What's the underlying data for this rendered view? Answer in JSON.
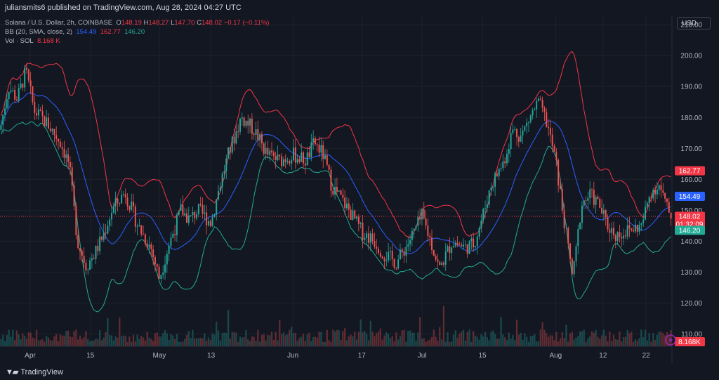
{
  "header": {
    "published": "juliansmits6 published on TradingView.com, Aug 28, 2024 04:27 UTC"
  },
  "legend": {
    "symbol": "Solana / U.S. Dollar, 2h, COINBASE",
    "o_label": "O",
    "o": "148.19",
    "h_label": "H",
    "h": "148.27",
    "l_label": "L",
    "l": "147.70",
    "c_label": "C",
    "c": "148.02",
    "change": "−0.17 (−0.11%)",
    "bb_label": "BB (20, SMA, close, 2)",
    "bb_mid": "154.49",
    "bb_upper": "162.77",
    "bb_lower": "146.20",
    "vol_label": "Vol · SOL",
    "vol": "8.168 K"
  },
  "currency": "USD",
  "brand": "TradingView",
  "colors": {
    "background": "#131722",
    "grid": "#1e222d",
    "upper_band": "#f23645",
    "basis": "#2962ff",
    "lower_band": "#22ab94",
    "up": "#26a69a",
    "down": "#ef5350",
    "text": "#b2b5be"
  },
  "badges": {
    "upper": "162.77",
    "basis": "154.49",
    "price": "148.02",
    "countdown": "01:32:09",
    "lower": "146.20",
    "volume": "8.168K"
  },
  "chart_data": {
    "type": "candlestick",
    "title": "Solana / U.S. Dollar, 2h, COINBASE",
    "y_ticks": [
      210,
      200,
      190,
      180,
      170,
      160,
      150,
      140,
      130,
      120,
      110
    ],
    "ylim": [
      106,
      213
    ],
    "x_ticks": [
      "Apr",
      "15",
      "May",
      "13",
      "Jun",
      "17",
      "Jul",
      "15",
      "Aug",
      "12",
      "22"
    ],
    "x_dates": [
      "2024-04-01",
      "2024-04-15",
      "2024-05-01",
      "2024-05-13",
      "2024-06-01",
      "2024-06-17",
      "2024-07-01",
      "2024-07-15",
      "2024-08-01",
      "2024-08-12",
      "2024-08-22"
    ],
    "x_range": [
      "2024-03-25",
      "2024-08-28"
    ],
    "last_price": 148.02,
    "bollinger": {
      "upper": 162.77,
      "basis": 154.49,
      "lower": 146.2
    },
    "close_path": [
      [
        "2024-03-25",
        176
      ],
      [
        "2024-03-27",
        190
      ],
      [
        "2024-03-29",
        186
      ],
      [
        "2024-03-31",
        195
      ],
      [
        "2024-04-02",
        182
      ],
      [
        "2024-04-05",
        178
      ],
      [
        "2024-04-08",
        172
      ],
      [
        "2024-04-10",
        165
      ],
      [
        "2024-04-12",
        140
      ],
      [
        "2024-04-14",
        132
      ],
      [
        "2024-04-16",
        136
      ],
      [
        "2024-04-18",
        142
      ],
      [
        "2024-04-20",
        150
      ],
      [
        "2024-04-23",
        156
      ],
      [
        "2024-04-26",
        145
      ],
      [
        "2024-04-29",
        138
      ],
      [
        "2024-05-01",
        128
      ],
      [
        "2024-05-03",
        138
      ],
      [
        "2024-05-06",
        150
      ],
      [
        "2024-05-08",
        147
      ],
      [
        "2024-05-10",
        150
      ],
      [
        "2024-05-13",
        146
      ],
      [
        "2024-05-15",
        158
      ],
      [
        "2024-05-17",
        168
      ],
      [
        "2024-05-20",
        180
      ],
      [
        "2024-05-23",
        176
      ],
      [
        "2024-05-26",
        168
      ],
      [
        "2024-05-29",
        166
      ],
      [
        "2024-06-01",
        168
      ],
      [
        "2024-06-04",
        166
      ],
      [
        "2024-06-06",
        172
      ],
      [
        "2024-06-08",
        168
      ],
      [
        "2024-06-10",
        158
      ],
      [
        "2024-06-12",
        154
      ],
      [
        "2024-06-14",
        150
      ],
      [
        "2024-06-17",
        143
      ],
      [
        "2024-06-20",
        140
      ],
      [
        "2024-06-22",
        136
      ],
      [
        "2024-06-25",
        133
      ],
      [
        "2024-06-28",
        140
      ],
      [
        "2024-07-01",
        148
      ],
      [
        "2024-07-03",
        140
      ],
      [
        "2024-07-05",
        131
      ],
      [
        "2024-07-08",
        140
      ],
      [
        "2024-07-11",
        138
      ],
      [
        "2024-07-13",
        139
      ],
      [
        "2024-07-15",
        148
      ],
      [
        "2024-07-17",
        158
      ],
      [
        "2024-07-20",
        166
      ],
      [
        "2024-07-22",
        176
      ],
      [
        "2024-07-24",
        174
      ],
      [
        "2024-07-26",
        180
      ],
      [
        "2024-07-28",
        185
      ],
      [
        "2024-07-30",
        178
      ],
      [
        "2024-08-01",
        166
      ],
      [
        "2024-08-03",
        146
      ],
      [
        "2024-08-05",
        128
      ],
      [
        "2024-08-07",
        152
      ],
      [
        "2024-08-09",
        155
      ],
      [
        "2024-08-11",
        152
      ],
      [
        "2024-08-13",
        145
      ],
      [
        "2024-08-15",
        142
      ],
      [
        "2024-08-17",
        143
      ],
      [
        "2024-08-19",
        144
      ],
      [
        "2024-08-21",
        145
      ],
      [
        "2024-08-23",
        156
      ],
      [
        "2024-08-25",
        158
      ],
      [
        "2024-08-27",
        150
      ],
      [
        "2024-08-28",
        148
      ]
    ]
  }
}
